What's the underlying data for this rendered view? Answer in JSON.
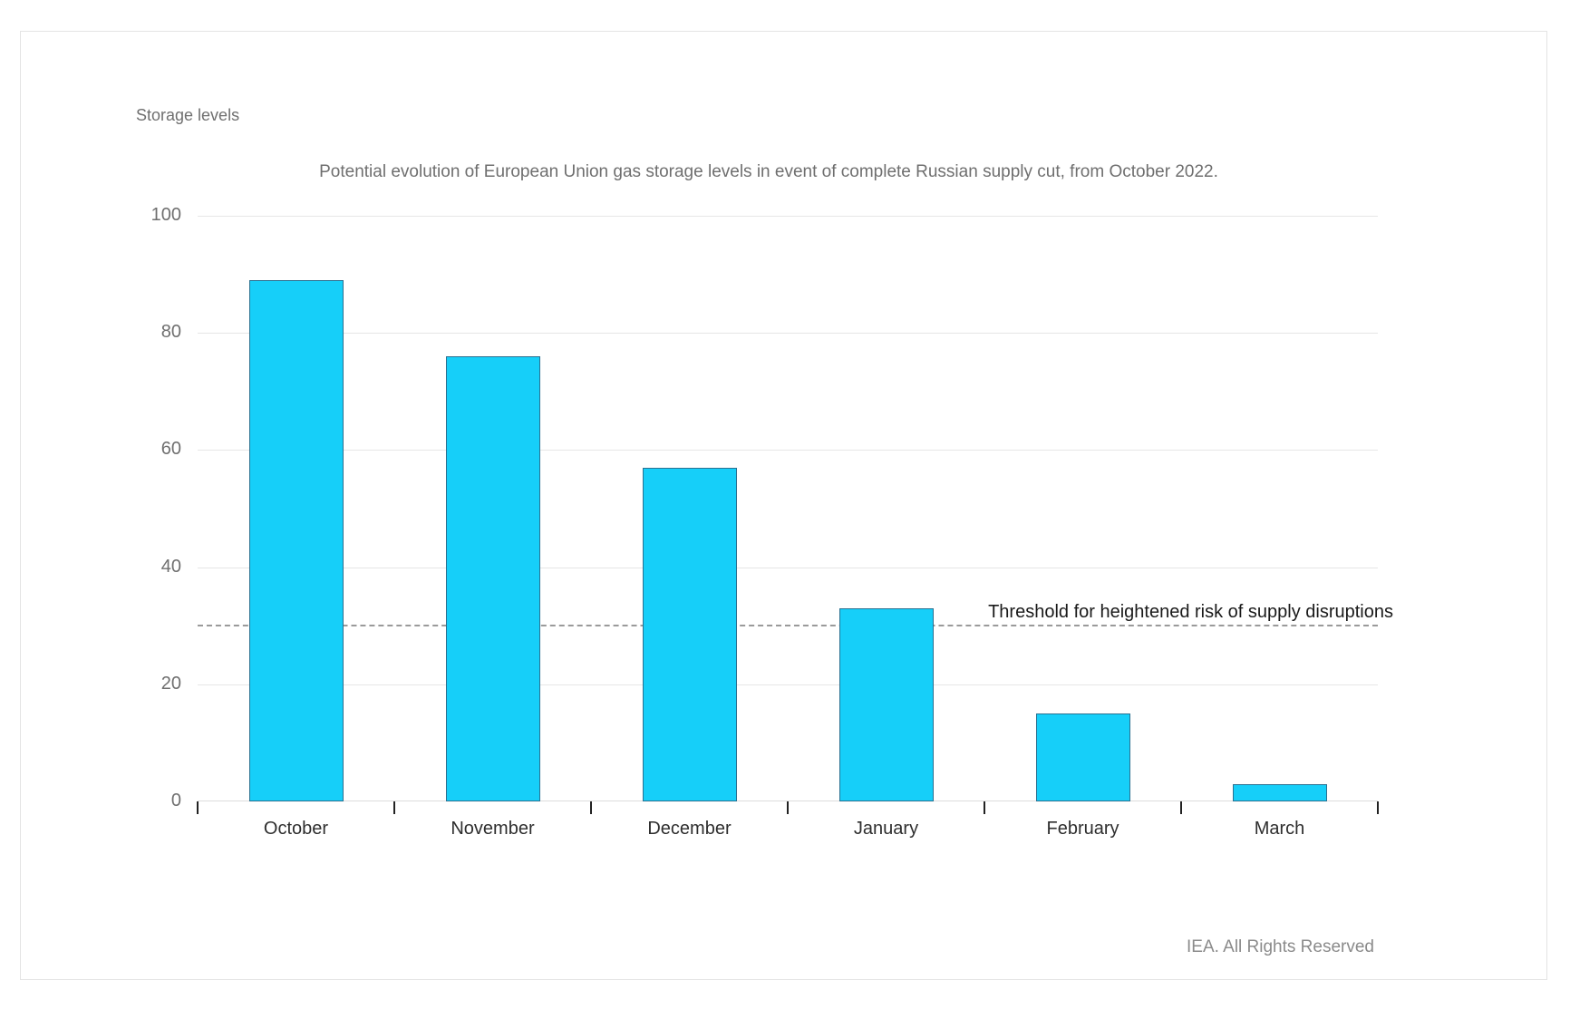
{
  "page": {
    "footer": "IEA. All Rights Reserved"
  },
  "chart_data": {
    "type": "bar",
    "title": "Potential evolution of European Union gas storage levels in event of complete Russian supply cut, from October 2022.",
    "ylabel": "Storage levels",
    "categories": [
      "October",
      "November",
      "December",
      "January",
      "February",
      "March"
    ],
    "values": [
      89,
      76,
      57,
      33,
      15,
      3
    ],
    "ylim": [
      0,
      100
    ],
    "yticks": [
      0,
      20,
      40,
      60,
      80,
      100
    ],
    "grid": true,
    "legend": "none",
    "threshold": {
      "value": 30,
      "label": "Threshold for heightened risk of supply disruptions"
    },
    "colors": {
      "bar_fill": "#16CFF9",
      "bar_border": "#2A7090",
      "gridline": "#E6E6E6",
      "axis_text": "#6F6F6F",
      "category_text": "#2E2E2E",
      "threshold_line": "#9A9A9A",
      "threshold_text": "#1A1A1A",
      "footer_text": "#8B8B8B",
      "frame_border": "#E4E4E4"
    }
  }
}
